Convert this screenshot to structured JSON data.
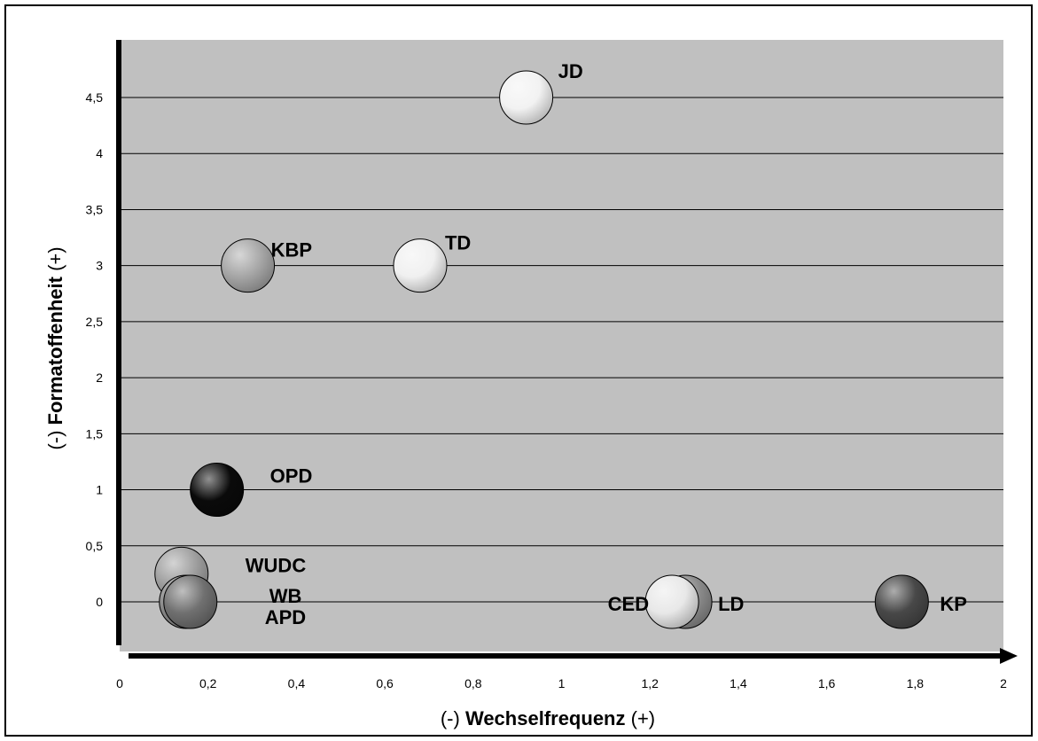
{
  "chart_data": {
    "type": "bubble",
    "xlabel_prefix": "(-) ",
    "xlabel": "Wechselfrequenz",
    "xlabel_suffix": " (+)",
    "ylabel_prefix": "(-) ",
    "ylabel": "Formatoffenheit",
    "ylabel_suffix": " (+)",
    "xlim": [
      0,
      2
    ],
    "ylim": [
      -0.45,
      5
    ],
    "x_ticks": [
      "0",
      "0,2",
      "0,4",
      "0,6",
      "0,8",
      "1",
      "1,2",
      "1,4",
      "1,6",
      "1,8",
      "2"
    ],
    "y_ticks": [
      "0",
      "0,5",
      "1",
      "1,5",
      "2",
      "2,5",
      "3",
      "3,5",
      "4",
      "4,5"
    ],
    "grid": true,
    "plot_background": "#c0c0c0",
    "points": [
      {
        "label": "JD",
        "x": 0.92,
        "y": 4.5,
        "color": "#f2f2f2"
      },
      {
        "label": "KBP",
        "x": 0.29,
        "y": 3.0,
        "color": "#a6a6a6"
      },
      {
        "label": "TD",
        "x": 0.68,
        "y": 3.0,
        "color": "#f0f0f0"
      },
      {
        "label": "OPD",
        "x": 0.22,
        "y": 1.0,
        "color": "#0a0a0a"
      },
      {
        "label": "WUDC",
        "x": 0.14,
        "y": 0.25,
        "color": "#a0a0a0"
      },
      {
        "label": "WB",
        "x": 0.15,
        "y": 0.0,
        "color": "#8a8a8a"
      },
      {
        "label": "APD",
        "x": 0.16,
        "y": 0.0,
        "color": "#707070"
      },
      {
        "label": "LD",
        "x": 1.28,
        "y": 0.0,
        "color": "#8c8c8c"
      },
      {
        "label": "CED",
        "x": 1.25,
        "y": 0.0,
        "color": "#e8e8e8"
      },
      {
        "label": "KP",
        "x": 1.77,
        "y": 0.0,
        "color": "#484848"
      }
    ]
  }
}
